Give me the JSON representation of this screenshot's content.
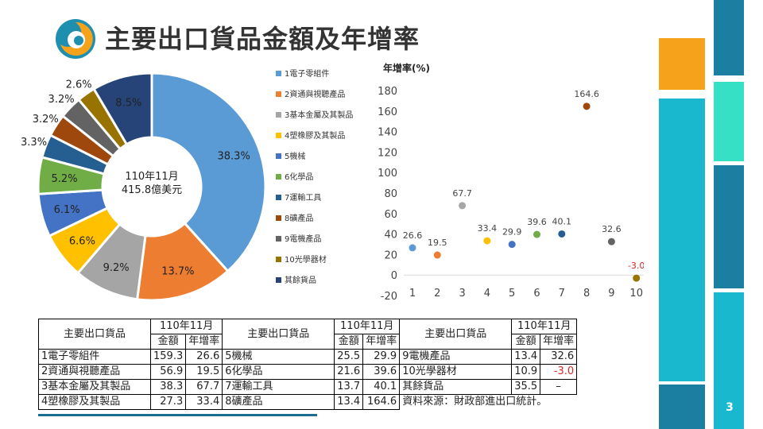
{
  "title": "主要出口貨品金額及年增率",
  "page_number": "3",
  "colors": {
    "accent_teal": "#1e8aa8",
    "accent_orange": "#f7a21b",
    "accent_mint": "#36e0c5",
    "accent_cyan": "#1ab8cf"
  },
  "chart_data": [
    {
      "type": "pie",
      "center_label": [
        "110年11月",
        "415.8億美元"
      ],
      "categories": [
        "1電子零組件",
        "2資通與視聽產品",
        "3基本金屬及其製品",
        "4塑橡膠及其製品",
        "5機械",
        "6化學品",
        "7運輸工具",
        "8礦產品",
        "9電機產品",
        "10光學器材",
        "其餘貨品"
      ],
      "values": [
        38.3,
        13.7,
        9.2,
        6.6,
        6.1,
        5.2,
        3.3,
        3.2,
        3.2,
        2.6,
        8.5
      ],
      "value_labels": [
        "38.3%",
        "13.7%",
        "9.2%",
        "6.6%",
        "6.1%",
        "5.2%",
        "3.3%",
        "3.2%",
        "3.2%",
        "2.6%",
        "8.5%"
      ],
      "colors": [
        "#5b9bd5",
        "#ed7d31",
        "#a5a5a5",
        "#ffc000",
        "#4472c4",
        "#70ad47",
        "#255e91",
        "#9e480e",
        "#636363",
        "#997300",
        "#264478"
      ],
      "legend_position": "right"
    },
    {
      "type": "scatter",
      "ylabel": "年增率(%)",
      "x": [
        1,
        2,
        3,
        4,
        5,
        6,
        7,
        8,
        9,
        10
      ],
      "y": [
        26.6,
        19.5,
        67.7,
        33.4,
        29.9,
        39.6,
        40.1,
        164.6,
        32.6,
        -3.0
      ],
      "point_labels": [
        "26.6",
        "19.5",
        "67.7",
        "33.4",
        "29.9",
        "39.6",
        "40.1",
        "164.6",
        "32.6",
        "-3.0"
      ],
      "colors": [
        "#5b9bd5",
        "#ed7d31",
        "#a5a5a5",
        "#ffc000",
        "#4472c4",
        "#70ad47",
        "#255e91",
        "#9e480e",
        "#636363",
        "#997300"
      ],
      "negative_label_color": "#d62828",
      "ylim": [
        -20,
        180
      ],
      "yticks": [
        -20,
        0,
        20,
        40,
        60,
        80,
        100,
        120,
        140,
        160,
        180
      ],
      "xticks": [
        "1",
        "2",
        "3",
        "4",
        "5",
        "6",
        "7",
        "8",
        "9",
        "10"
      ],
      "grid": false
    }
  ],
  "table": {
    "col_header": "主要出口貨品",
    "period": "110年11月",
    "amount": "金額",
    "growth": "年增率",
    "rows": [
      [
        {
          "name": "1電子零組件",
          "amount": "159.3",
          "growth": "26.6"
        },
        {
          "name": "5機械",
          "amount": "25.5",
          "growth": "29.9"
        },
        {
          "name": "9電機產品",
          "amount": "13.4",
          "growth": "32.6"
        }
      ],
      [
        {
          "name": "2資通與視聽產品",
          "amount": "56.9",
          "growth": "19.5"
        },
        {
          "name": "6化學品",
          "amount": "21.6",
          "growth": "39.6"
        },
        {
          "name": "10光學器材",
          "amount": "10.9",
          "growth": "-3.0"
        }
      ],
      [
        {
          "name": "3基本金屬及其製品",
          "amount": "38.3",
          "growth": "67.7"
        },
        {
          "name": "7運輸工具",
          "amount": "13.7",
          "growth": "40.1"
        },
        {
          "name": "其餘貨品",
          "amount": "35.5",
          "growth": "–"
        }
      ],
      [
        {
          "name": "4塑橡膠及其製品",
          "amount": "27.3",
          "growth": "33.4"
        },
        {
          "name": "8礦產品",
          "amount": "13.4",
          "growth": "164.6"
        }
      ]
    ],
    "source": "資料來源：財政部進出口統計。"
  }
}
